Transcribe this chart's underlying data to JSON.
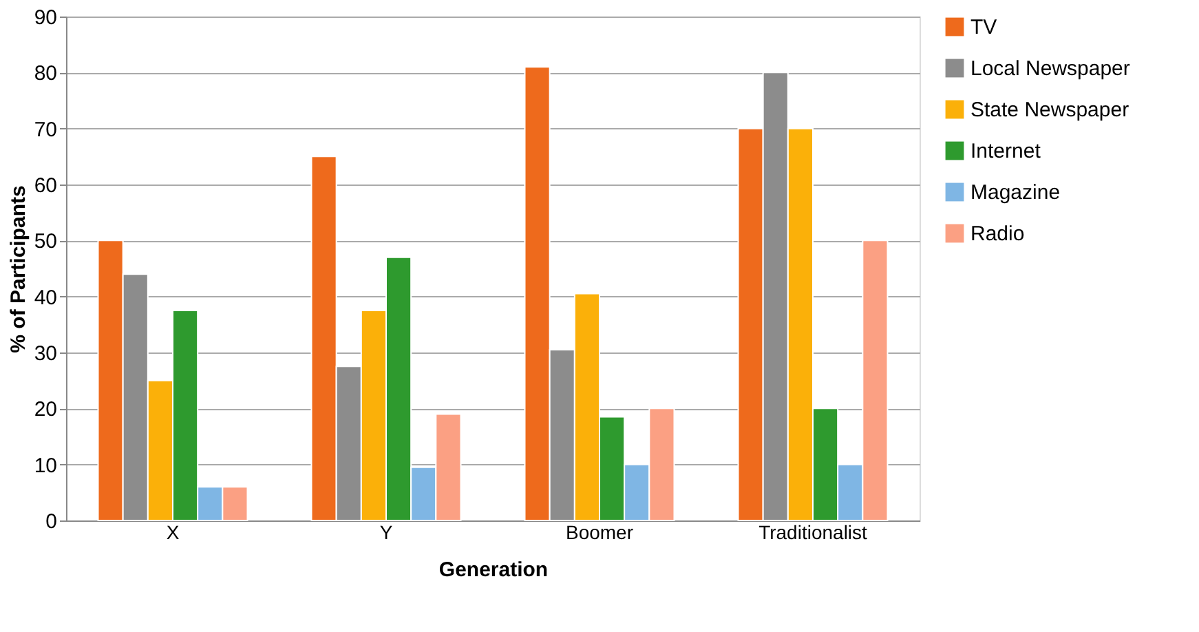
{
  "chart_data": {
    "type": "bar",
    "xlabel": "Generation",
    "ylabel": "% of Participants",
    "categories": [
      "X",
      "Y",
      "Boomer",
      "Traditionalist"
    ],
    "series": [
      {
        "name": "TV",
        "color": "#ee6a1c",
        "values": [
          50,
          65,
          81,
          70
        ]
      },
      {
        "name": "Local Newspaper",
        "color": "#8c8c8c",
        "values": [
          44,
          27.5,
          30.5,
          80
        ]
      },
      {
        "name": "State Newspaper",
        "color": "#fbb009",
        "values": [
          25,
          37.5,
          40.5,
          70
        ]
      },
      {
        "name": "Internet",
        "color": "#2e9a2e",
        "values": [
          37.5,
          47,
          18.5,
          20
        ]
      },
      {
        "name": "Magazine",
        "color": "#7fb6e4",
        "values": [
          6,
          9.5,
          10,
          10
        ]
      },
      {
        "name": "Radio",
        "color": "#fba083",
        "values": [
          6,
          19,
          20,
          50
        ]
      }
    ],
    "ylim": [
      0,
      90
    ],
    "yticks": [
      0,
      10,
      20,
      30,
      40,
      50,
      60,
      70,
      80,
      90
    ],
    "grid": "y",
    "legend": "right"
  }
}
